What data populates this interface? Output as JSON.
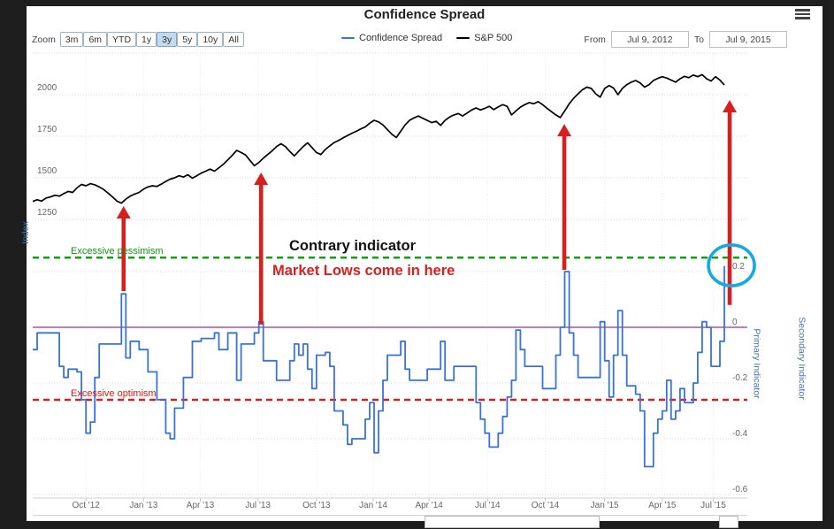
{
  "header": {
    "title": "Confidence Spread",
    "menu_icon": "hamburger-icon"
  },
  "toolbar": {
    "zoom_label": "Zoom",
    "buttons": [
      {
        "label": "3m",
        "selected": false
      },
      {
        "label": "6m",
        "selected": false
      },
      {
        "label": "YTD",
        "selected": false
      },
      {
        "label": "1y",
        "selected": false
      },
      {
        "label": "3y",
        "selected": true
      },
      {
        "label": "5y",
        "selected": false
      },
      {
        "label": "10y",
        "selected": false
      },
      {
        "label": "All",
        "selected": false
      }
    ],
    "from_label": "From",
    "from_value": "Jul 9, 2012",
    "to_label": "To",
    "to_value": "Jul 9, 2015"
  },
  "legend": [
    {
      "label": "Confidence Spread",
      "color": "#3a72d8"
    },
    {
      "label": "S&P 500",
      "color": "#000000"
    }
  ],
  "chart_data": {
    "type": "line",
    "title": "Confidence Spread",
    "x_axis": {
      "start": "Jul 9, 2012",
      "end": "Jul 9, 2015",
      "unit": "weeks",
      "range": [
        0,
        157.5
      ],
      "tick_labels": [
        "Oct '12",
        "Jan '13",
        "Apr '13",
        "Jul '13",
        "Oct '13",
        "Jan '14",
        "Apr '14",
        "Jul '14",
        "Oct '14",
        "Jan '15",
        "Apr '15",
        "Jul '15"
      ],
      "tick_weeks": [
        12,
        25,
        37.8,
        50.8,
        64,
        76.8,
        89.4,
        102.6,
        115.6,
        129,
        142,
        153.5
      ]
    },
    "primary_axis": {
      "title": "Index",
      "color": "#4572a7",
      "ticks": [
        2250,
        2000,
        1750,
        1500,
        1250
      ],
      "labeled_ticks": [
        "2000",
        "1750",
        "1500",
        "1250"
      ]
    },
    "secondary_axis": {
      "titles": [
        "Primary Indicator",
        "Secondary Indicator"
      ],
      "color": "#4572a7",
      "ticks": [
        0.2,
        0,
        -0.2,
        -0.4,
        -0.6
      ]
    },
    "thresholds": [
      {
        "name": "excessive-pessimism",
        "label": "Excessive pessimism",
        "axis": "secondary",
        "value": 0.25,
        "color": "#14a014",
        "style": "dashed"
      },
      {
        "name": "excessive-optimism",
        "label": "Excessive optimism",
        "axis": "secondary",
        "value": -0.26,
        "color": "#e31a1a",
        "style": "dashed"
      },
      {
        "name": "zero-line",
        "label": "",
        "axis": "secondary",
        "value": 0,
        "color": "#993399",
        "style": "solid"
      }
    ],
    "series": [
      {
        "name": "S&P 500",
        "axis": "primary",
        "color": "#000000",
        "step": false,
        "values": [
          1358,
          1368,
          1360,
          1378,
          1385,
          1395,
          1390,
          1405,
          1418,
          1412,
          1440,
          1460,
          1452,
          1465,
          1458,
          1445,
          1430,
          1408,
          1385,
          1360,
          1348,
          1372,
          1390,
          1402,
          1412,
          1432,
          1445,
          1452,
          1448,
          1462,
          1478,
          1492,
          1500,
          1512,
          1505,
          1518,
          1498,
          1512,
          1528,
          1540,
          1552,
          1540,
          1560,
          1582,
          1608,
          1635,
          1665,
          1652,
          1638,
          1605,
          1573,
          1592,
          1618,
          1640,
          1662,
          1688,
          1705,
          1688,
          1658,
          1632,
          1660,
          1688,
          1710,
          1682,
          1652,
          1640,
          1670,
          1692,
          1712,
          1725,
          1740,
          1754,
          1768,
          1780,
          1794,
          1806,
          1828,
          1846,
          1836,
          1818,
          1790,
          1762,
          1742,
          1780,
          1818,
          1846,
          1860,
          1872,
          1858,
          1845,
          1832,
          1840,
          1815,
          1845,
          1865,
          1878,
          1886,
          1872,
          1890,
          1908,
          1920,
          1908,
          1918,
          1930,
          1910,
          1926,
          1940,
          1930,
          1878,
          1902,
          1925,
          1940,
          1952,
          1945,
          1958,
          1940,
          1918,
          1898,
          1878,
          1862,
          1902,
          1945,
          1978,
          2005,
          2030,
          2045,
          2037,
          2005,
          1985,
          2037,
          2055,
          2040,
          2000,
          2037,
          2060,
          2075,
          2085,
          2070,
          2045,
          2060,
          2085,
          2098,
          2108,
          2100,
          2088,
          2075,
          2095,
          2110,
          2102,
          2118,
          2108,
          2120,
          2096,
          2082,
          2108,
          2088,
          2058
        ]
      },
      {
        "name": "Confidence Spread",
        "axis": "secondary",
        "color": "#3a72d8",
        "step": true,
        "points": [
          [
            0,
            -0.08
          ],
          [
            1,
            -0.02
          ],
          [
            5,
            -0.02
          ],
          [
            6,
            -0.14
          ],
          [
            7,
            -0.18
          ],
          [
            8,
            -0.15
          ],
          [
            10,
            -0.16
          ],
          [
            11,
            -0.26
          ],
          [
            12,
            -0.38
          ],
          [
            13,
            -0.34
          ],
          [
            14,
            -0.18
          ],
          [
            15,
            -0.06
          ],
          [
            19,
            -0.06
          ],
          [
            20,
            0.12
          ],
          [
            21,
            -0.11
          ],
          [
            22,
            -0.05
          ],
          [
            24,
            -0.08
          ],
          [
            26,
            -0.16
          ],
          [
            28,
            -0.26
          ],
          [
            30,
            -0.38
          ],
          [
            31,
            -0.4
          ],
          [
            32,
            -0.29
          ],
          [
            34,
            -0.18
          ],
          [
            36,
            -0.05
          ],
          [
            38,
            -0.04
          ],
          [
            41,
            -0.02
          ],
          [
            42,
            -0.08
          ],
          [
            44,
            -0.02
          ],
          [
            46,
            -0.19
          ],
          [
            47,
            -0.06
          ],
          [
            49,
            -0.06
          ],
          [
            50,
            -0.02
          ],
          [
            51,
            0.02
          ],
          [
            52,
            -0.12
          ],
          [
            55,
            -0.19
          ],
          [
            58,
            -0.12
          ],
          [
            59,
            -0.06
          ],
          [
            60,
            -0.1
          ],
          [
            61,
            -0.06
          ],
          [
            62,
            -0.15
          ],
          [
            63,
            -0.22
          ],
          [
            64,
            -0.1
          ],
          [
            66,
            -0.09
          ],
          [
            67,
            -0.14
          ],
          [
            68,
            -0.3
          ],
          [
            70,
            -0.35
          ],
          [
            71,
            -0.42
          ],
          [
            72,
            -0.4
          ],
          [
            75,
            -0.33
          ],
          [
            76,
            -0.27
          ],
          [
            77,
            -0.45
          ],
          [
            78,
            -0.3
          ],
          [
            79,
            -0.19
          ],
          [
            80,
            -0.1
          ],
          [
            83,
            -0.05
          ],
          [
            84,
            -0.15
          ],
          [
            85,
            -0.19
          ],
          [
            89,
            -0.15
          ],
          [
            92,
            -0.05
          ],
          [
            93,
            -0.19
          ],
          [
            95,
            -0.14
          ],
          [
            99,
            -0.14
          ],
          [
            100,
            -0.27
          ],
          [
            101,
            -0.33
          ],
          [
            102,
            -0.38
          ],
          [
            103,
            -0.43
          ],
          [
            105,
            -0.38
          ],
          [
            106,
            -0.32
          ],
          [
            107,
            -0.25
          ],
          [
            108,
            -0.19
          ],
          [
            109,
            -0.01
          ],
          [
            110,
            -0.08
          ],
          [
            111,
            -0.14
          ],
          [
            115,
            -0.22
          ],
          [
            117,
            -0.22
          ],
          [
            118,
            -0.1
          ],
          [
            119,
            0.0
          ],
          [
            120,
            0.2
          ],
          [
            121,
            -0.02
          ],
          [
            122,
            -0.1
          ],
          [
            123,
            -0.18
          ],
          [
            127,
            -0.18
          ],
          [
            128,
            0.02
          ],
          [
            129,
            -0.12
          ],
          [
            130,
            -0.25
          ],
          [
            131,
            -0.1
          ],
          [
            132,
            0.06
          ],
          [
            133,
            -0.1
          ],
          [
            134,
            -0.21
          ],
          [
            136,
            -0.24
          ],
          [
            137,
            -0.3
          ],
          [
            138,
            -0.5
          ],
          [
            139,
            -0.5
          ],
          [
            140,
            -0.38
          ],
          [
            141,
            -0.33
          ],
          [
            142,
            -0.3
          ],
          [
            143,
            -0.19
          ],
          [
            144,
            -0.33
          ],
          [
            145,
            -0.3
          ],
          [
            146,
            -0.22
          ],
          [
            147,
            -0.27
          ],
          [
            149,
            -0.2
          ],
          [
            150,
            -0.09
          ],
          [
            151,
            0.02
          ],
          [
            152,
            0.0
          ],
          [
            153,
            -0.14
          ],
          [
            154,
            -0.14
          ],
          [
            155,
            -0.05
          ],
          [
            156,
            0.22
          ]
        ]
      }
    ],
    "annotations": {
      "contrary_indicator": "Contrary indicator",
      "market_lows": "Market Lows come in here",
      "excessive_pessimism": "Excessive pessimism",
      "excessive_optimism": "Excessive optimism",
      "arrow_color": "#d62020",
      "circle_color": "#18a8e0",
      "arrows": [
        {
          "week": 20.5,
          "from": {
            "axis": "secondary",
            "value": 0.13
          },
          "to": {
            "axis": "primary",
            "value": 1330
          }
        },
        {
          "week": 51.5,
          "from": {
            "axis": "secondary",
            "value": 0.01
          },
          "to": {
            "axis": "primary",
            "value": 1532
          }
        },
        {
          "week": 119.9,
          "from": {
            "axis": "secondary",
            "value": 0.206
          },
          "to": {
            "axis": "primary",
            "value": 1824
          }
        },
        {
          "week": 157.2,
          "from": {
            "axis": "secondary",
            "value": 0.08
          },
          "to": {
            "axis": "primary",
            "value": 1968
          }
        }
      ],
      "circle": {
        "week": 157,
        "axis": "secondary",
        "value": 0.235
      }
    },
    "grid": {
      "color": "#dadada",
      "vertical": true,
      "horizontal": true
    }
  }
}
